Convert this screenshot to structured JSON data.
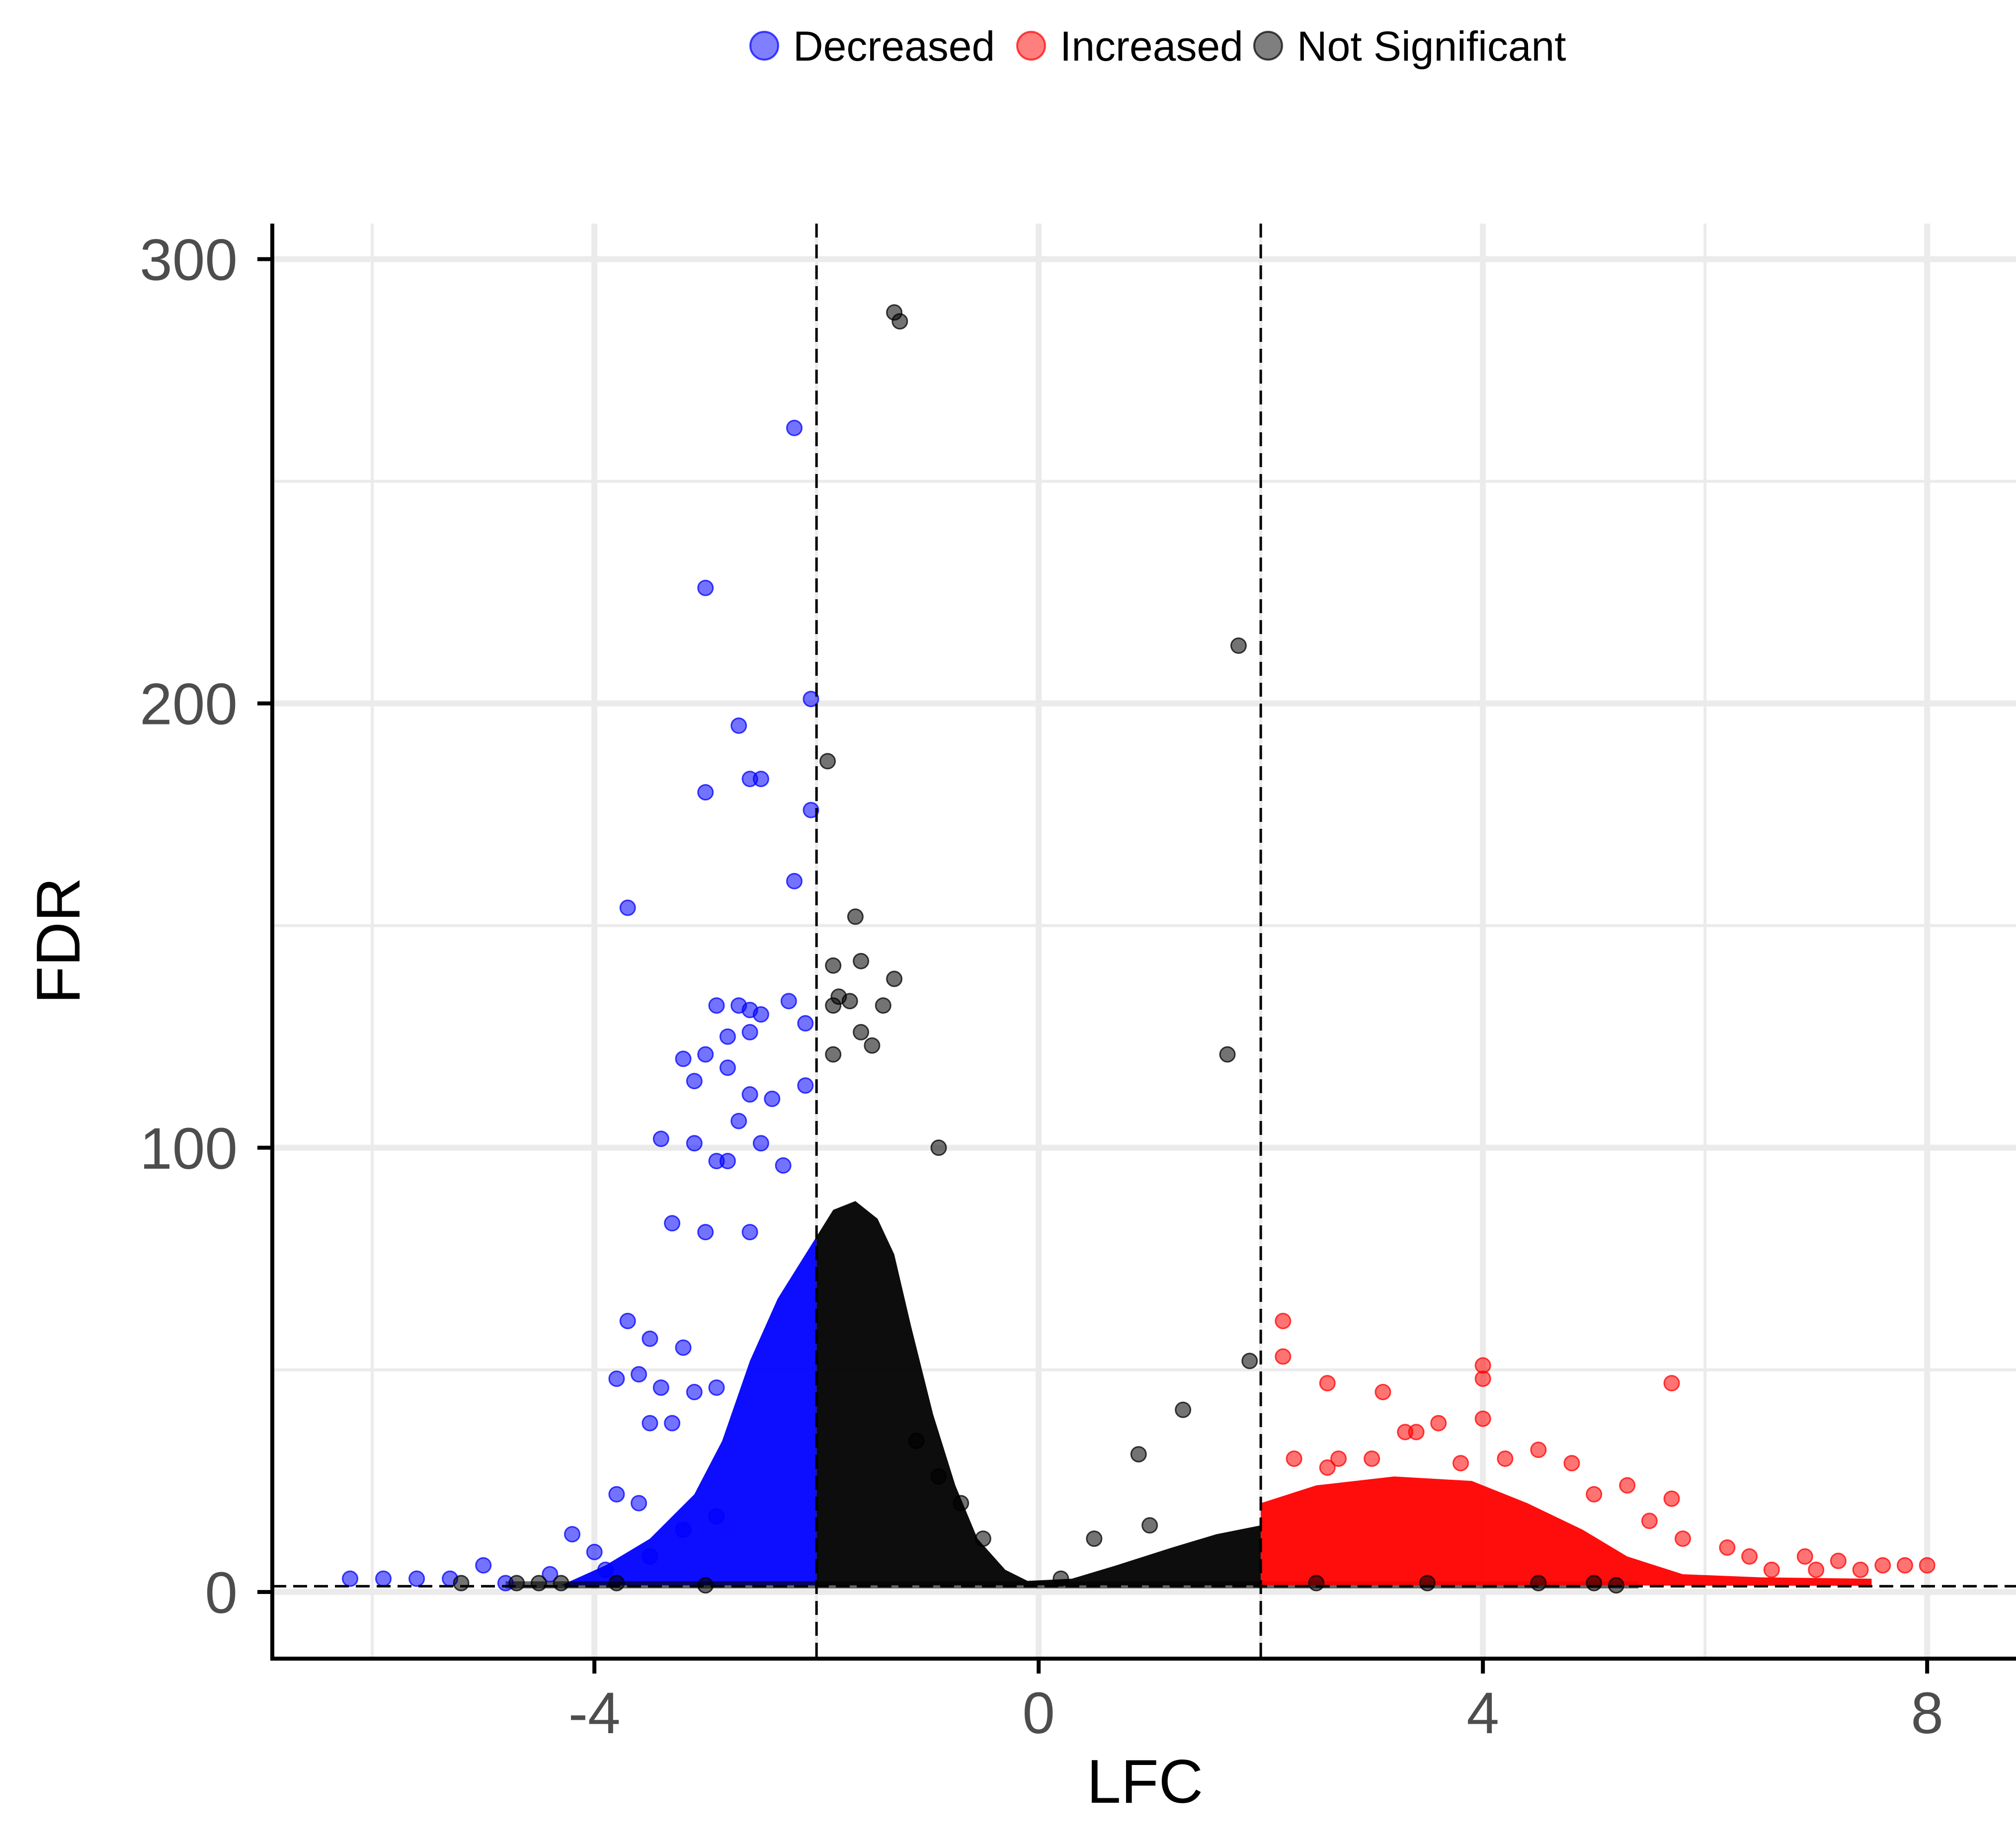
{
  "chart_data": {
    "type": "scatter",
    "title": "",
    "xlabel": "LFC",
    "ylabel": "FDR",
    "xlim": [
      -6.9,
      8.8
    ],
    "ylim": [
      -15,
      308
    ],
    "x_ticks": [
      -4,
      0,
      4,
      8
    ],
    "x_tick_labels": [
      "-4",
      "0",
      "4",
      "8"
    ],
    "y_ticks": [
      0,
      100,
      200,
      300
    ],
    "y_tick_labels": [
      "0",
      "100",
      "200",
      "300"
    ],
    "grid": true,
    "legend_position": "top",
    "reference_lines": {
      "vertical_x": [
        -2,
        2
      ],
      "horizontal_y": [
        1.3
      ]
    },
    "series": [
      {
        "name": "Decreased",
        "color": "#0000ff",
        "points": [
          [
            -2.2,
            262
          ],
          [
            -3.0,
            226
          ],
          [
            -2.7,
            195
          ],
          [
            -2.6,
            183
          ],
          [
            -2.5,
            183
          ],
          [
            -3.0,
            180
          ],
          [
            -2.05,
            176
          ],
          [
            -2.05,
            201
          ],
          [
            -2.2,
            160
          ],
          [
            -3.7,
            154
          ],
          [
            -2.9,
            132
          ],
          [
            -2.7,
            132
          ],
          [
            -2.6,
            131
          ],
          [
            -2.5,
            130
          ],
          [
            -2.25,
            133
          ],
          [
            -2.1,
            128
          ],
          [
            -2.8,
            125
          ],
          [
            -2.6,
            126
          ],
          [
            -3.0,
            121
          ],
          [
            -3.2,
            120
          ],
          [
            -2.8,
            118
          ],
          [
            -3.1,
            115
          ],
          [
            -2.6,
            112
          ],
          [
            -2.1,
            114
          ],
          [
            -2.4,
            111
          ],
          [
            -2.7,
            106
          ],
          [
            -3.4,
            102
          ],
          [
            -3.1,
            101
          ],
          [
            -2.5,
            101
          ],
          [
            -2.8,
            97
          ],
          [
            -2.9,
            97
          ],
          [
            -2.3,
            96
          ],
          [
            -3.3,
            83
          ],
          [
            -3.0,
            81
          ],
          [
            -2.6,
            81
          ],
          [
            -3.7,
            61
          ],
          [
            -3.5,
            57
          ],
          [
            -3.2,
            55
          ],
          [
            -3.8,
            48
          ],
          [
            -3.6,
            49
          ],
          [
            -3.4,
            46
          ],
          [
            -3.1,
            45
          ],
          [
            -2.9,
            46
          ],
          [
            -3.5,
            38
          ],
          [
            -3.3,
            38
          ],
          [
            -4.2,
            13
          ],
          [
            -3.8,
            22
          ],
          [
            -3.6,
            20
          ],
          [
            -4.0,
            9
          ],
          [
            -4.4,
            4
          ],
          [
            -5.0,
            6
          ],
          [
            -5.3,
            3
          ],
          [
            -5.6,
            3
          ],
          [
            -5.9,
            3
          ],
          [
            -6.2,
            3
          ],
          [
            -4.8,
            2
          ],
          [
            -3.9,
            5
          ],
          [
            -3.5,
            8
          ],
          [
            -3.2,
            14
          ],
          [
            -2.9,
            17
          ]
        ]
      },
      {
        "name": "Increased",
        "color": "#ff0000",
        "points": [
          [
            2.2,
            61
          ],
          [
            2.2,
            53
          ],
          [
            2.6,
            47
          ],
          [
            3.1,
            45
          ],
          [
            4.0,
            51
          ],
          [
            4.0,
            48
          ],
          [
            5.7,
            47
          ],
          [
            4.0,
            39
          ],
          [
            3.6,
            38
          ],
          [
            3.4,
            36
          ],
          [
            3.3,
            36
          ],
          [
            4.5,
            32
          ],
          [
            3.0,
            30
          ],
          [
            2.7,
            30
          ],
          [
            2.3,
            30
          ],
          [
            2.6,
            28
          ],
          [
            3.8,
            29
          ],
          [
            4.2,
            30
          ],
          [
            4.8,
            29
          ],
          [
            5.3,
            24
          ],
          [
            5.7,
            21
          ],
          [
            5.0,
            22
          ],
          [
            5.5,
            16
          ],
          [
            5.8,
            12
          ],
          [
            6.2,
            10
          ],
          [
            6.4,
            8
          ],
          [
            6.9,
            8
          ],
          [
            7.2,
            7
          ],
          [
            7.6,
            6
          ],
          [
            7.8,
            6
          ],
          [
            8.0,
            6
          ],
          [
            6.6,
            5
          ],
          [
            7.0,
            5
          ],
          [
            7.4,
            5
          ]
        ]
      },
      {
        "name": "Not Significant",
        "color": "#000000",
        "points": [
          [
            -1.3,
            288
          ],
          [
            -1.25,
            286
          ],
          [
            1.8,
            213
          ],
          [
            -1.9,
            187
          ],
          [
            -1.65,
            152
          ],
          [
            -1.85,
            141
          ],
          [
            -1.6,
            142
          ],
          [
            -1.3,
            138
          ],
          [
            -1.8,
            134
          ],
          [
            -1.85,
            132
          ],
          [
            -1.4,
            132
          ],
          [
            -1.7,
            133
          ],
          [
            -1.6,
            126
          ],
          [
            -1.5,
            123
          ],
          [
            1.7,
            121
          ],
          [
            -1.85,
            121
          ],
          [
            -0.9,
            100
          ],
          [
            1.9,
            52
          ],
          [
            1.3,
            41
          ],
          [
            0.9,
            31
          ],
          [
            0.5,
            12
          ],
          [
            1.0,
            15
          ],
          [
            0.2,
            3
          ],
          [
            -4.5,
            2
          ],
          [
            -4.7,
            2
          ],
          [
            -5.2,
            2
          ],
          [
            -4.3,
            2
          ],
          [
            -3.8,
            2
          ],
          [
            -3.0,
            1.5
          ],
          [
            2.5,
            2
          ],
          [
            3.5,
            2
          ],
          [
            4.5,
            2
          ],
          [
            5.0,
            2
          ],
          [
            5.2,
            1.5
          ],
          [
            -0.5,
            12
          ],
          [
            -0.7,
            20
          ],
          [
            -0.9,
            26
          ],
          [
            -1.1,
            34
          ]
        ]
      }
    ]
  }
}
